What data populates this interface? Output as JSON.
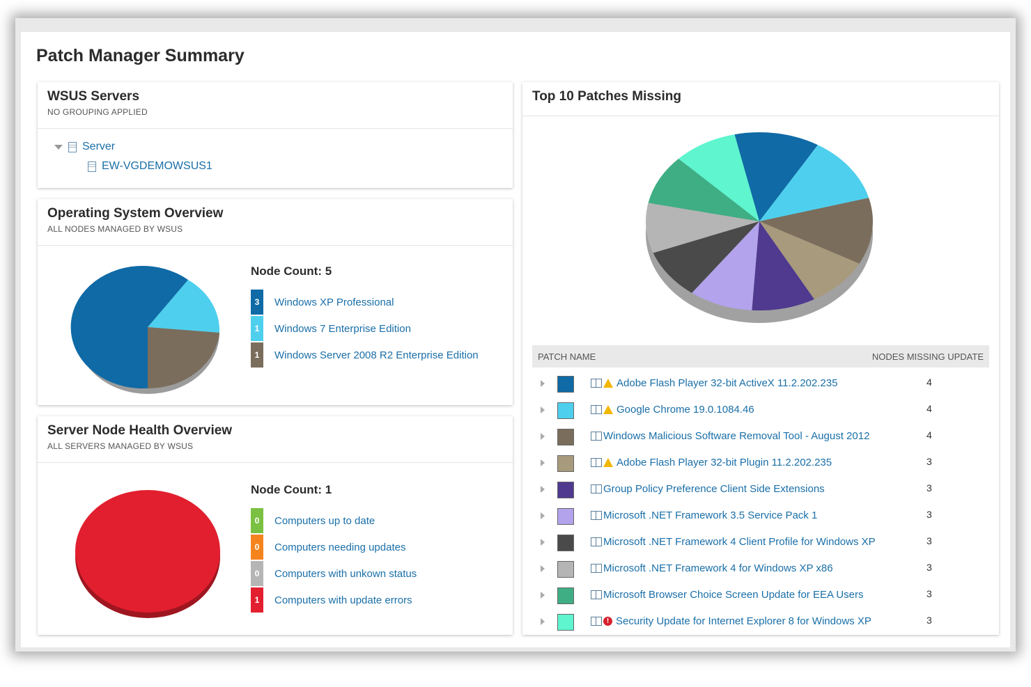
{
  "page": {
    "title": "Patch Manager Summary"
  },
  "wsus": {
    "title": "WSUS Servers",
    "subtitle": "NO GROUPING APPLIED",
    "group_label": "Server",
    "server_name": "EW-VGDEMOWSUS1"
  },
  "os_overview": {
    "title": "Operating System Overview",
    "subtitle": "ALL NODES MANAGED BY WSUS",
    "node_count_label": "Node Count: 5",
    "items": [
      {
        "count": "3",
        "label": "Windows XP Professional",
        "color": "#0f6aa6"
      },
      {
        "count": "1",
        "label": "Windows 7 Enterprise Edition",
        "color": "#4fcfee"
      },
      {
        "count": "1",
        "label": "Windows Server 2008 R2 Enterprise Edition",
        "color": "#7a6d5c"
      }
    ]
  },
  "health": {
    "title": "Server Node Health Overview",
    "subtitle": "ALL SERVERS MANAGED BY WSUS",
    "node_count_label": "Node Count: 1",
    "items": [
      {
        "count": "0",
        "label": "Computers up to date",
        "color": "#7ac143"
      },
      {
        "count": "0",
        "label": "Computers needing updates",
        "color": "#f5841f"
      },
      {
        "count": "0",
        "label": "Computers with unkown status",
        "color": "#b5b5b5"
      },
      {
        "count": "1",
        "label": "Computers with update errors",
        "color": "#e21f2f"
      }
    ]
  },
  "patches": {
    "title": "Top 10 Patches Missing",
    "col_name": "PATCH NAME",
    "col_count": "NODES MISSING UPDATE",
    "rows": [
      {
        "name": "Adobe Flash Player 32-bit ActiveX 11.2.202.235",
        "count": "4",
        "color": "#0f6aa6",
        "status_icon": "warning-icon"
      },
      {
        "name": "Google Chrome 19.0.1084.46",
        "count": "4",
        "color": "#4fcfee",
        "status_icon": "warning-icon"
      },
      {
        "name": "Windows Malicious Software Removal Tool - August 2012",
        "count": "4",
        "color": "#7a6d5c",
        "status_icon": ""
      },
      {
        "name": "Adobe Flash Player 32-bit Plugin 11.2.202.235",
        "count": "3",
        "color": "#a89a7c",
        "status_icon": "warning-icon"
      },
      {
        "name": "Group Policy Preference Client Side Extensions",
        "count": "3",
        "color": "#4f3a8f",
        "status_icon": ""
      },
      {
        "name": "Microsoft .NET Framework 3.5 Service Pack 1",
        "count": "3",
        "color": "#b3a3ec",
        "status_icon": ""
      },
      {
        "name": "Microsoft .NET Framework 4 Client Profile for Windows XP",
        "count": "3",
        "color": "#4a4a4a",
        "status_icon": ""
      },
      {
        "name": "Microsoft .NET Framework 4 for Windows XP x86",
        "count": "3",
        "color": "#b5b5b5",
        "status_icon": ""
      },
      {
        "name": "Microsoft Browser Choice Screen Update for EEA Users",
        "count": "3",
        "color": "#3fae85",
        "status_icon": ""
      },
      {
        "name": "Security Update for Internet Explorer 8 for Windows XP",
        "count": "3",
        "color": "#5ef5cf",
        "status_icon": "error-icon"
      }
    ]
  }
}
